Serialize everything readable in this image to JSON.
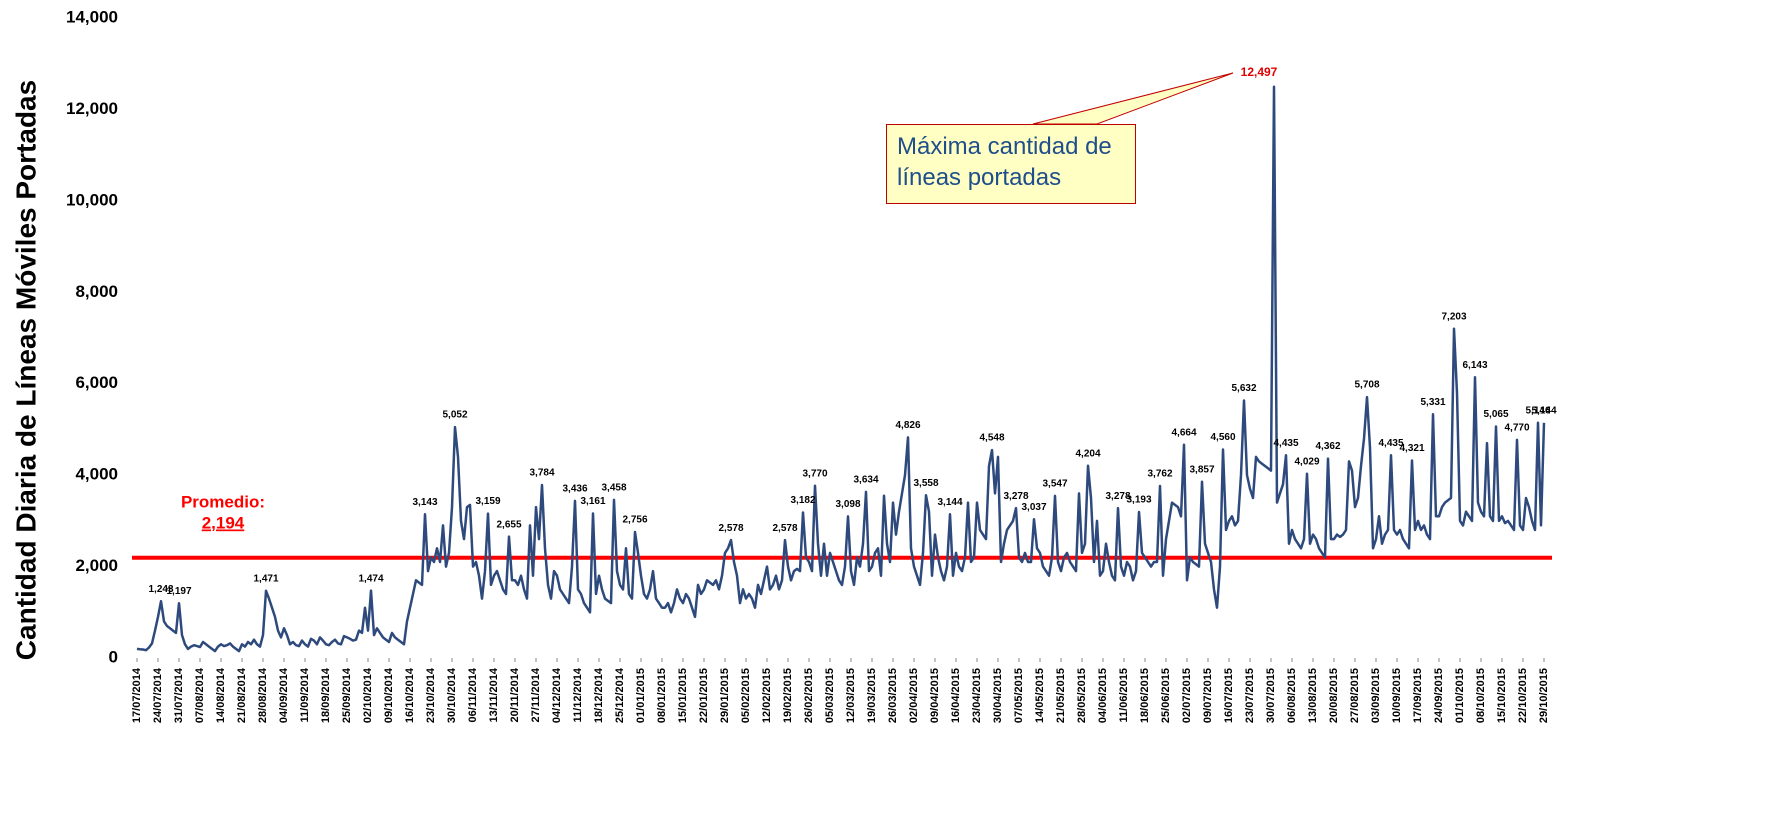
{
  "chart_data": {
    "type": "line",
    "y_label": "Cantidad Diaria de Líneas Móviles Portadas",
    "color": "#2e4a7d",
    "max_label_color": "#e00000",
    "ylim": [
      0,
      14000
    ],
    "yticks": [
      0,
      {
        "value": 2000,
        "label": "2,000"
      },
      {
        "value": 4000,
        "label": "4,000"
      },
      {
        "value": 6000,
        "label": "6,000"
      },
      {
        "value": 8000,
        "label": "8,000"
      },
      {
        "value": 10000,
        "label": "10,000"
      },
      {
        "value": 12000,
        "label": "12,000"
      },
      {
        "value": 14000,
        "label": "14,000"
      }
    ],
    "average": {
      "label": "Promedio:",
      "value": 2194,
      "value_label": "2,194",
      "color": "#ff0000"
    },
    "annotation": {
      "text": "Máxima cantidad de líneas portadas"
    },
    "categories": [
      "17/07/2014",
      null,
      null,
      null,
      null,
      null,
      null,
      "24/07/2014",
      null,
      null,
      null,
      null,
      null,
      null,
      "31/07/2014",
      null,
      null,
      null,
      null,
      null,
      null,
      "07/08/2014",
      null,
      null,
      null,
      null,
      null,
      null,
      "14/08/2014",
      null,
      null,
      null,
      null,
      null,
      null,
      "21/08/2014",
      null,
      null,
      null,
      null,
      null,
      null,
      "28/08/2014",
      null,
      null,
      null,
      null,
      null,
      null,
      "04/09/2014",
      null,
      null,
      null,
      null,
      null,
      null,
      "11/09/2014",
      null,
      null,
      null,
      null,
      null,
      null,
      "18/09/2014",
      null,
      null,
      null,
      null,
      null,
      null,
      "25/09/2014",
      null,
      null,
      null,
      null,
      null,
      null,
      "02/10/2014",
      null,
      null,
      null,
      null,
      null,
      null,
      "09/10/2014",
      null,
      null,
      null,
      null,
      null,
      null,
      "16/10/2014",
      null,
      null,
      null,
      null,
      null,
      null,
      "23/10/2014",
      null,
      null,
      null,
      null,
      null,
      null,
      "30/10/2014",
      null,
      null,
      null,
      null,
      null,
      null,
      "06/11/2014",
      null,
      null,
      null,
      null,
      null,
      null,
      "13/11/2014",
      null,
      null,
      null,
      null,
      null,
      null,
      "20/11/2014",
      null,
      null,
      null,
      null,
      null,
      null,
      "27/11/2014",
      null,
      null,
      null,
      null,
      null,
      null,
      "04/12/2014",
      null,
      null,
      null,
      null,
      null,
      null,
      "11/12/2014",
      null,
      null,
      null,
      null,
      null,
      null,
      "18/12/2014",
      null,
      null,
      null,
      null,
      null,
      null,
      "25/12/2014",
      null,
      null,
      null,
      null,
      null,
      null,
      "01/01/2015",
      null,
      null,
      null,
      null,
      null,
      null,
      "08/01/2015",
      null,
      null,
      null,
      null,
      null,
      null,
      "15/01/2015",
      null,
      null,
      null,
      null,
      null,
      null,
      "22/01/2015",
      null,
      null,
      null,
      null,
      null,
      null,
      "29/01/2015",
      null,
      null,
      null,
      null,
      null,
      null,
      "05/02/2015",
      null,
      null,
      null,
      null,
      null,
      null,
      "12/02/2015",
      null,
      null,
      null,
      null,
      null,
      null,
      "19/02/2015",
      null,
      null,
      null,
      null,
      null,
      null,
      "26/02/2015",
      null,
      null,
      null,
      null,
      null,
      null,
      "05/03/2015",
      null,
      null,
      null,
      null,
      null,
      null,
      "12/03/2015",
      null,
      null,
      null,
      null,
      null,
      null,
      "19/03/2015",
      null,
      null,
      null,
      null,
      null,
      null,
      "26/03/2015",
      null,
      null,
      null,
      null,
      null,
      null,
      "02/04/2015",
      null,
      null,
      null,
      null,
      null,
      null,
      "09/04/2015",
      null,
      null,
      null,
      null,
      null,
      null,
      "16/04/2015",
      null,
      null,
      null,
      null,
      null,
      null,
      "23/04/2015",
      null,
      null,
      null,
      null,
      null,
      null,
      "30/04/2015",
      null,
      null,
      null,
      null,
      null,
      null,
      "07/05/2015",
      null,
      null,
      null,
      null,
      null,
      null,
      "14/05/2015",
      null,
      null,
      null,
      null,
      null,
      null,
      "21/05/2015",
      null,
      null,
      null,
      null,
      null,
      null,
      "28/05/2015",
      null,
      null,
      null,
      null,
      null,
      null,
      "04/06/2015",
      null,
      null,
      null,
      null,
      null,
      null,
      "11/06/2015",
      null,
      null,
      null,
      null,
      null,
      null,
      "18/06/2015",
      null,
      null,
      null,
      null,
      null,
      null,
      "25/06/2015",
      null,
      null,
      null,
      null,
      null,
      null,
      "02/07/2015",
      null,
      null,
      null,
      null,
      null,
      null,
      "09/07/2015",
      null,
      null,
      null,
      null,
      null,
      null,
      "16/07/2015",
      null,
      null,
      null,
      null,
      null,
      null,
      "23/07/2015",
      null,
      null,
      null,
      null,
      null,
      null,
      "30/07/2015",
      null,
      null,
      null,
      null,
      null,
      null,
      "06/08/2015",
      null,
      null,
      null,
      null,
      null,
      null,
      "13/08/2015",
      null,
      null,
      null,
      null,
      null,
      null,
      "20/08/2015",
      null,
      null,
      null,
      null,
      null,
      null,
      "27/08/2015",
      null,
      null,
      null,
      null,
      null,
      null,
      "03/09/2015",
      null,
      null,
      null,
      null,
      null,
      null,
      "10/09/2015",
      null,
      null,
      null,
      null,
      null,
      null,
      "17/09/2015",
      null,
      null,
      null,
      null,
      null,
      null,
      "24/09/2015",
      null,
      null,
      null,
      null,
      null,
      null,
      "01/10/2015",
      null,
      null,
      null,
      null,
      null,
      null,
      "08/10/2015",
      null,
      null,
      null,
      null,
      null,
      null,
      "15/10/2015",
      null,
      null,
      null,
      null,
      null,
      null,
      "22/10/2015",
      null,
      null,
      null,
      null,
      null,
      null,
      "29/10/2015"
    ],
    "values": [
      200,
      190,
      185,
      170,
      230,
      320,
      600,
      900,
      1243,
      800,
      700,
      650,
      600,
      550,
      1197,
      500,
      300,
      200,
      250,
      280,
      260,
      240,
      350,
      300,
      250,
      200,
      150,
      250,
      300,
      260,
      280,
      320,
      250,
      200,
      150,
      300,
      250,
      350,
      300,
      400,
      300,
      250,
      500,
      1471,
      1300,
      1100,
      900,
      600,
      450,
      650,
      500,
      300,
      350,
      280,
      260,
      380,
      300,
      250,
      420,
      380,
      300,
      450,
      380,
      300,
      280,
      350,
      400,
      320,
      300,
      480,
      450,
      420,
      380,
      400,
      600,
      550,
      1100,
      600,
      1474,
      500,
      650,
      550,
      450,
      400,
      350,
      550,
      450,
      400,
      350,
      300,
      800,
      1100,
      1400,
      1700,
      1650,
      1600,
      3143,
      1900,
      2200,
      2100,
      2400,
      2100,
      2900,
      2000,
      2300,
      3300,
      5052,
      4400,
      3000,
      2600,
      3300,
      3350,
      2000,
      2100,
      1800,
      1300,
      1900,
      3159,
      1600,
      1800,
      1900,
      1700,
      1500,
      1400,
      2655,
      1700,
      1700,
      1600,
      1800,
      1500,
      1300,
      2900,
      1800,
      3300,
      2600,
      3784,
      2400,
      1600,
      1300,
      1900,
      1800,
      1500,
      1400,
      1300,
      1200,
      2000,
      3436,
      1500,
      1400,
      1200,
      1100,
      1000,
      3161,
      1400,
      1800,
      1500,
      1300,
      1250,
      1200,
      3458,
      1900,
      1600,
      1500,
      2400,
      1400,
      1300,
      2756,
      2300,
      1800,
      1400,
      1300,
      1500,
      1900,
      1300,
      1200,
      1100,
      1100,
      1200,
      1000,
      1200,
      1500,
      1300,
      1200,
      1400,
      1300,
      1100,
      900,
      1600,
      1400,
      1500,
      1700,
      1650,
      1600,
      1700,
      1500,
      1800,
      2300,
      2400,
      2578,
      2100,
      1800,
      1200,
      1500,
      1300,
      1400,
      1300,
      1100,
      1600,
      1400,
      1700,
      2000,
      1500,
      1600,
      1800,
      1500,
      1700,
      2578,
      2000,
      1700,
      1900,
      1950,
      1900,
      3182,
      2200,
      2100,
      1900,
      3770,
      2500,
      1800,
      2500,
      1800,
      2300,
      2100,
      1900,
      1700,
      1600,
      2000,
      3098,
      1900,
      1600,
      2200,
      2000,
      2500,
      3634,
      1900,
      2000,
      2300,
      2400,
      1800,
      3550,
      2500,
      2100,
      3400,
      2700,
      3200,
      3600,
      4000,
      4826,
      2400,
      2000,
      1800,
      1600,
      2300,
      3558,
      3200,
      1800,
      2700,
      2200,
      1900,
      1700,
      2000,
      3144,
      1800,
      2300,
      2000,
      1900,
      2200,
      3400,
      2100,
      2200,
      3400,
      2800,
      2700,
      2600,
      4200,
      4548,
      3600,
      4400,
      2100,
      2500,
      2800,
      2900,
      3000,
      3278,
      2200,
      2100,
      2300,
      2100,
      2100,
      3037,
      2400,
      2300,
      2000,
      1900,
      1800,
      2200,
      3547,
      2100,
      1900,
      2200,
      2300,
      2100,
      2000,
      1900,
      3600,
      2300,
      2500,
      4204,
      3500,
      2100,
      3000,
      1800,
      1900,
      2500,
      2100,
      1800,
      1700,
      3278,
      2000,
      1800,
      2100,
      2000,
      1700,
      1900,
      3193,
      2300,
      2200,
      2100,
      2000,
      2100,
      2100,
      3762,
      1800,
      2600,
      3000,
      3400,
      3350,
      3300,
      3100,
      4664,
      1700,
      2200,
      2100,
      2050,
      2000,
      3857,
      2500,
      2300,
      2100,
      1500,
      1100,
      2000,
      4560,
      2800,
      3000,
      3100,
      2900,
      3000,
      4000,
      5632,
      4000,
      3700,
      3500,
      4400,
      4300,
      4250,
      4200,
      4150,
      4100,
      12497,
      3400,
      3600,
      3800,
      4435,
      2500,
      2800,
      2600,
      2500,
      2400,
      2600,
      4029,
      2500,
      2700,
      2600,
      2400,
      2300,
      2200,
      4362,
      2600,
      2600,
      2700,
      2650,
      2700,
      2800,
      4300,
      4100,
      3300,
      3500,
      4200,
      4800,
      5708,
      4600,
      2400,
      2600,
      3100,
      2500,
      2700,
      2800,
      4435,
      2800,
      2700,
      2800,
      2600,
      2500,
      2400,
      4321,
      2800,
      3000,
      2800,
      2900,
      2700,
      2600,
      5331,
      3100,
      3100,
      3300,
      3400,
      3450,
      3500,
      7203,
      5800,
      3000,
      2900,
      3200,
      3100,
      3000,
      6143,
      3400,
      3200,
      3100,
      4700,
      3100,
      3000,
      5065,
      3000,
      3100,
      2950,
      3000,
      2900,
      2800,
      4770,
      2900,
      2800,
      3500,
      3300,
      3000,
      2800,
      5146,
      2900,
      5144
    ],
    "value_labels": [
      null,
      null,
      null,
      null,
      null,
      null,
      null,
      null,
      "1,243",
      null,
      null,
      null,
      null,
      null,
      "1,197",
      null,
      null,
      null,
      null,
      null,
      null,
      null,
      null,
      null,
      null,
      null,
      null,
      null,
      null,
      null,
      null,
      null,
      null,
      null,
      null,
      null,
      null,
      null,
      null,
      null,
      null,
      null,
      null,
      "1,471",
      null,
      null,
      null,
      null,
      null,
      null,
      null,
      null,
      null,
      null,
      null,
      null,
      null,
      null,
      null,
      null,
      null,
      null,
      null,
      null,
      null,
      null,
      null,
      null,
      null,
      null,
      null,
      null,
      null,
      null,
      null,
      null,
      null,
      null,
      "1,474",
      null,
      null,
      null,
      null,
      null,
      null,
      null,
      null,
      null,
      null,
      null,
      null,
      null,
      null,
      null,
      null,
      null,
      "3,143",
      null,
      null,
      null,
      null,
      null,
      null,
      null,
      null,
      null,
      "5,052",
      null,
      null,
      null,
      null,
      null,
      null,
      null,
      null,
      null,
      null,
      "3,159",
      null,
      null,
      null,
      null,
      null,
      null,
      "2,655",
      null,
      null,
      null,
      null,
      null,
      null,
      null,
      null,
      null,
      null,
      "3,784",
      null,
      null,
      null,
      null,
      null,
      null,
      null,
      null,
      null,
      null,
      "3,436",
      null,
      null,
      null,
      null,
      null,
      "3,161",
      null,
      null,
      null,
      null,
      null,
      null,
      "3,458",
      null,
      null,
      null,
      null,
      null,
      null,
      "2,756",
      null,
      null,
      null,
      null,
      null,
      null,
      null,
      null,
      null,
      null,
      null,
      null,
      null,
      null,
      null,
      null,
      null,
      null,
      null,
      null,
      null,
      null,
      null,
      null,
      null,
      null,
      null,
      null,
      null,
      null,
      null,
      "2,578",
      null,
      null,
      null,
      null,
      null,
      null,
      null,
      null,
      null,
      null,
      null,
      null,
      null,
      null,
      null,
      null,
      null,
      "2,578",
      null,
      null,
      null,
      null,
      null,
      "3,182",
      null,
      null,
      null,
      "3,770",
      null,
      null,
      null,
      null,
      null,
      null,
      null,
      null,
      null,
      null,
      "3,098",
      null,
      null,
      null,
      null,
      null,
      "3,634",
      null,
      null,
      null,
      null,
      null,
      null,
      null,
      null,
      null,
      null,
      null,
      null,
      null,
      "4,826",
      null,
      null,
      null,
      null,
      null,
      "3,558",
      null,
      null,
      null,
      null,
      null,
      null,
      null,
      "3,144",
      null,
      null,
      null,
      null,
      null,
      null,
      null,
      null,
      null,
      null,
      null,
      null,
      null,
      "4,548",
      null,
      null,
      null,
      null,
      null,
      null,
      null,
      "3,278",
      null,
      null,
      null,
      null,
      null,
      "3,037",
      null,
      null,
      null,
      null,
      null,
      null,
      "3,547",
      null,
      null,
      null,
      null,
      null,
      null,
      null,
      null,
      null,
      null,
      "4,204",
      null,
      null,
      null,
      null,
      null,
      null,
      null,
      null,
      null,
      "3,278",
      null,
      null,
      null,
      null,
      null,
      null,
      "3,193",
      null,
      null,
      null,
      null,
      null,
      null,
      "3,762",
      null,
      null,
      null,
      null,
      null,
      null,
      null,
      "4,664",
      null,
      null,
      null,
      null,
      null,
      "3,857",
      null,
      null,
      null,
      null,
      null,
      null,
      "4,560",
      null,
      null,
      null,
      null,
      null,
      null,
      "5,632",
      null,
      null,
      null,
      null,
      null,
      null,
      null,
      null,
      null,
      "12,497",
      null,
      null,
      null,
      "4,435",
      null,
      null,
      null,
      null,
      null,
      null,
      "4,029",
      null,
      null,
      null,
      null,
      null,
      null,
      "4,362",
      null,
      null,
      null,
      null,
      null,
      null,
      null,
      null,
      null,
      null,
      null,
      null,
      "5,708",
      null,
      null,
      null,
      null,
      null,
      null,
      null,
      "4,435",
      null,
      null,
      null,
      null,
      null,
      null,
      "4,321",
      null,
      null,
      null,
      null,
      null,
      null,
      "5,331",
      null,
      null,
      null,
      null,
      null,
      null,
      "7,203",
      null,
      null,
      null,
      null,
      null,
      null,
      "6,143",
      null,
      null,
      null,
      null,
      null,
      null,
      "5,065",
      null,
      null,
      null,
      null,
      null,
      null,
      "4,770",
      null,
      null,
      null,
      null,
      null,
      null,
      "5,146",
      null,
      "5,144"
    ]
  }
}
